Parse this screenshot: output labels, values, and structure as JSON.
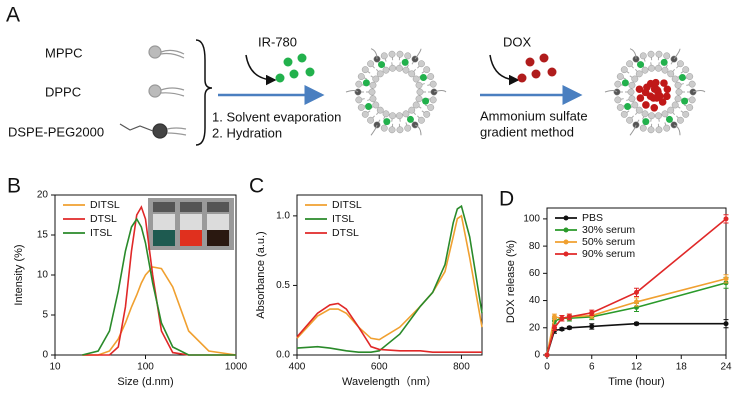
{
  "panel_a": {
    "label": "A",
    "lipids": [
      "MPPC",
      "DPPC",
      "DSPE-PEG2000"
    ],
    "step1": {
      "reagent": "IR-780",
      "steps": [
        "1. Solvent evaporation",
        "2. Hydration"
      ]
    },
    "step2": {
      "reagent": "DOX",
      "method": [
        "Ammonium sulfate",
        "gradient method"
      ]
    }
  },
  "chart_data": [
    {
      "type": "line",
      "label": "B",
      "xlabel": "Size (d.nm)",
      "ylabel": "Intensity (%)",
      "xlog": true,
      "xlim": [
        10,
        1000
      ],
      "xticks": [
        10,
        100,
        1000
      ],
      "ylim": [
        0,
        20
      ],
      "yticks": [
        0,
        5,
        10,
        15,
        20
      ],
      "legend": "upper left",
      "x": [
        20,
        30,
        40,
        50,
        60,
        70,
        80,
        90,
        100,
        120,
        150,
        200,
        300,
        500,
        1000
      ],
      "series": [
        {
          "name": "DITSL",
          "color": "#f0a030",
          "values": [
            0,
            0,
            0.5,
            2,
            4,
            6,
            7.5,
            9,
            10,
            11,
            10.8,
            8.5,
            3,
            0.5,
            0
          ]
        },
        {
          "name": "DTSL",
          "color": "#e02828",
          "values": [
            0,
            0,
            0,
            1,
            6,
            13,
            17.5,
            18.5,
            17,
            10,
            3,
            0.3,
            0,
            0,
            0
          ]
        },
        {
          "name": "ITSL",
          "color": "#2a8a2a",
          "values": [
            0,
            0.5,
            3,
            8,
            13,
            16,
            17,
            16,
            14,
            9,
            4,
            1,
            0,
            0,
            0
          ]
        }
      ]
    },
    {
      "type": "line",
      "label": "C",
      "xlabel": "Wavelength（nm）",
      "ylabel": "Absorbance (a.u.)",
      "xlim": [
        400,
        850
      ],
      "xticks": [
        400,
        600,
        800
      ],
      "ylim": [
        0,
        1.15
      ],
      "yticks": [
        {
          "value": 0,
          "label": "0.0"
        },
        {
          "value": 0.5,
          "label": "0.5"
        },
        {
          "value": 1,
          "label": "1.0"
        }
      ],
      "legend": "upper left",
      "x": [
        400,
        450,
        480,
        500,
        520,
        550,
        580,
        600,
        650,
        700,
        730,
        760,
        780,
        790,
        800,
        820,
        850
      ],
      "series": [
        {
          "name": "DITSL",
          "color": "#f0a030",
          "values": [
            0.12,
            0.28,
            0.33,
            0.33,
            0.3,
            0.2,
            0.12,
            0.11,
            0.2,
            0.35,
            0.45,
            0.6,
            0.85,
            0.98,
            1.0,
            0.7,
            0.2
          ]
        },
        {
          "name": "ITSL",
          "color": "#2a8a2a",
          "values": [
            0.05,
            0.06,
            0.05,
            0.04,
            0.03,
            0.02,
            0.02,
            0.03,
            0.15,
            0.35,
            0.45,
            0.65,
            0.95,
            1.05,
            1.07,
            0.85,
            0.3
          ]
        },
        {
          "name": "DTSL",
          "color": "#e02828",
          "values": [
            0.13,
            0.3,
            0.36,
            0.37,
            0.33,
            0.2,
            0.06,
            0.04,
            0.03,
            0.03,
            0.02,
            0.02,
            0.02,
            0.02,
            0.02,
            0.02,
            0.02
          ]
        }
      ]
    },
    {
      "type": "line",
      "label": "D",
      "xlabel": "Time (hour)",
      "ylabel": "DOX release (%)",
      "markers": true,
      "xlim": [
        0,
        24
      ],
      "xticks": [
        0,
        6,
        12,
        18,
        24
      ],
      "ylim": [
        0,
        108
      ],
      "yticks": [
        0,
        20,
        40,
        60,
        80,
        100
      ],
      "legend": "upper left",
      "x": [
        0,
        1,
        2,
        3,
        6,
        12,
        24
      ],
      "series": [
        {
          "name": "PBS",
          "color": "#111111",
          "values": [
            0,
            18,
            19,
            20,
            21,
            23,
            23
          ],
          "errors": [
            0,
            2,
            1,
            1,
            2,
            1,
            3
          ]
        },
        {
          "name": "30% serum",
          "color": "#2a9a2a",
          "values": [
            0,
            25,
            27,
            27,
            28,
            35,
            53
          ],
          "errors": [
            0,
            2,
            2,
            2,
            2,
            3,
            4
          ]
        },
        {
          "name": "50% serum",
          "color": "#f0a030",
          "values": [
            0,
            28,
            27,
            28,
            29,
            39,
            56
          ],
          "errors": [
            0,
            2,
            2,
            2,
            2,
            3,
            3
          ]
        },
        {
          "name": "90% serum",
          "color": "#e02828",
          "values": [
            0,
            20,
            27,
            28,
            31,
            46,
            100
          ],
          "errors": [
            0,
            2,
            2,
            2,
            2,
            3,
            3
          ]
        }
      ]
    }
  ]
}
